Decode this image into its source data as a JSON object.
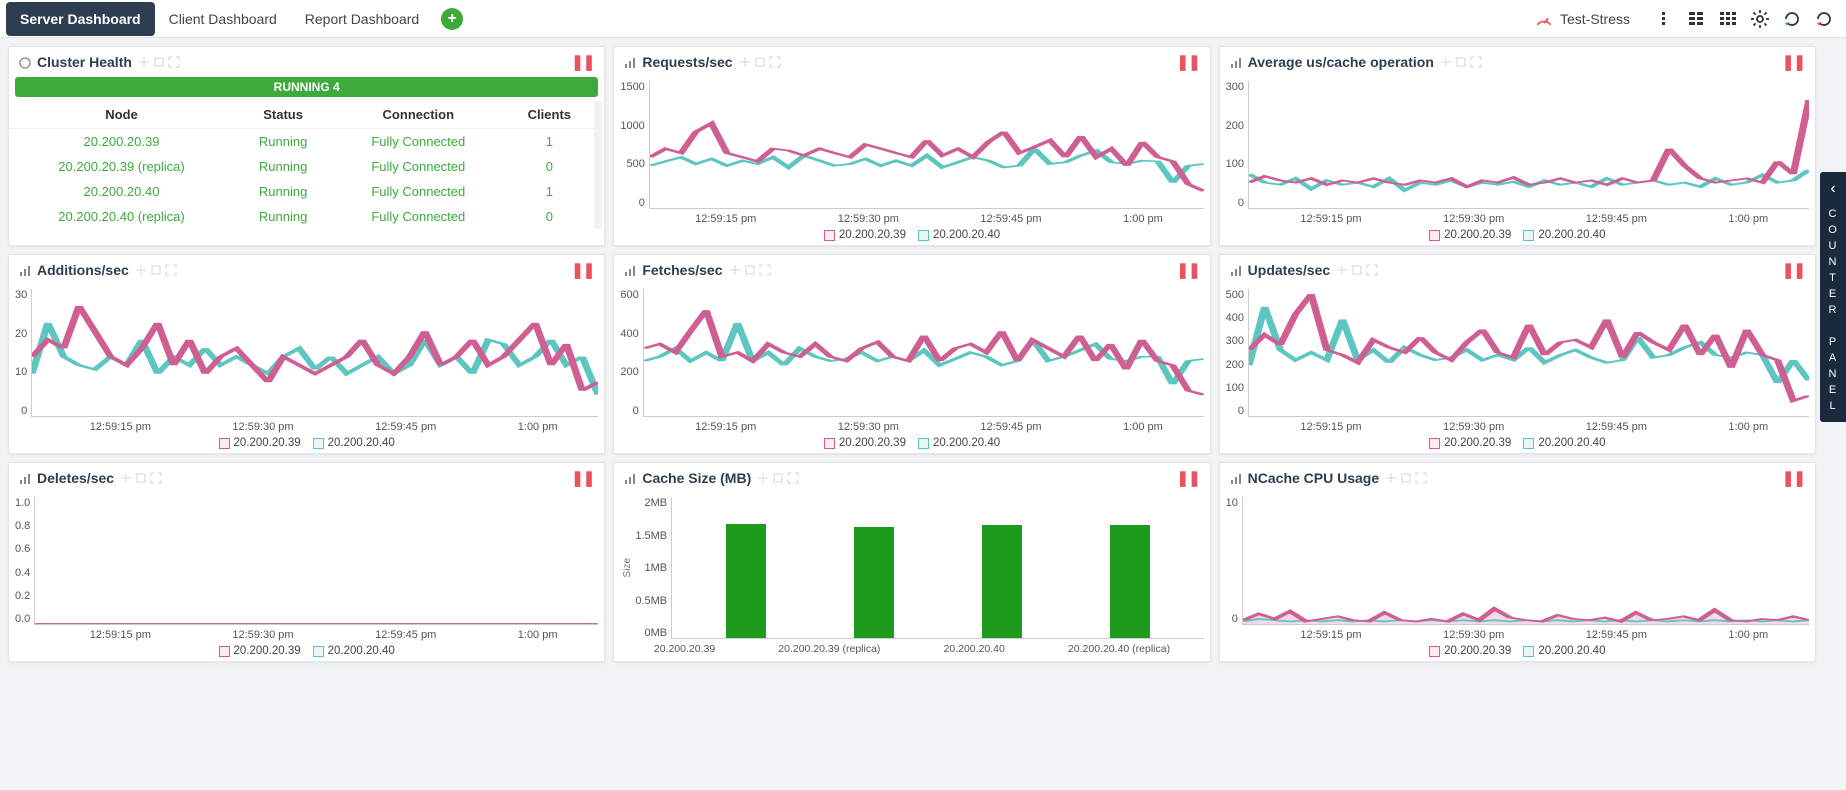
{
  "topbar": {
    "tabs": [
      "Server Dashboard",
      "Client Dashboard",
      "Report Dashboard"
    ],
    "active_tab_index": 0,
    "cluster_name": "Test-Stress"
  },
  "side_panel": {
    "label": "COUNTER PANEL"
  },
  "colors": {
    "series_a": "#cf5f93",
    "series_b": "#5ec6c0",
    "series_a_fill": "#e8b5d0",
    "bar": "#1d9b1d",
    "running": "#3eaa3e",
    "pause": "#e9525f"
  },
  "x_ticks": [
    "12:59:15 pm",
    "12:59:30 pm",
    "12:59:45 pm",
    "1:00 pm"
  ],
  "legend_series": [
    "20.200.20.39",
    "20.200.20.40"
  ],
  "cluster_health": {
    "title": "Cluster Health",
    "banner": "RUNNING 4",
    "columns": [
      "Node",
      "Status",
      "Connection",
      "Clients"
    ],
    "rows": [
      [
        "20.200.20.39",
        "Running",
        "Fully Connected",
        "1"
      ],
      [
        "20.200.20.39 (replica)",
        "Running",
        "Fully Connected",
        "0"
      ],
      [
        "20.200.20.40",
        "Running",
        "Fully Connected",
        "1"
      ],
      [
        "20.200.20.40 (replica)",
        "Running",
        "Fully Connected",
        "0"
      ]
    ]
  },
  "charts": {
    "requests": {
      "title": "Requests/sec",
      "ymax": 1500,
      "yticks": [
        "1500",
        "1000",
        "500",
        "0"
      ],
      "series_a": [
        600,
        700,
        650,
        900,
        1000,
        650,
        600,
        550,
        700,
        680,
        620,
        700,
        650,
        600,
        750,
        700,
        650,
        600,
        800,
        620,
        700,
        600,
        780,
        900,
        650,
        720,
        800,
        600,
        850,
        600,
        700,
        500,
        780,
        600,
        550,
        280,
        200
      ],
      "series_b": [
        500,
        550,
        600,
        520,
        580,
        500,
        560,
        520,
        600,
        480,
        620,
        560,
        500,
        520,
        580,
        500,
        560,
        500,
        620,
        480,
        540,
        600,
        560,
        480,
        500,
        700,
        520,
        540,
        620,
        680,
        540,
        520,
        560,
        550,
        300,
        500,
        520
      ]
    },
    "avg_us": {
      "title": "Average us/cache operation",
      "ymax": 300,
      "yticks": [
        "300",
        "200",
        "100",
        "0"
      ],
      "series_a": [
        60,
        75,
        65,
        60,
        70,
        55,
        65,
        60,
        70,
        60,
        55,
        65,
        60,
        70,
        50,
        65,
        60,
        72,
        55,
        60,
        70,
        60,
        65,
        55,
        70,
        60,
        65,
        140,
        100,
        70,
        60,
        65,
        70,
        60,
        110,
        80,
        255
      ],
      "series_b": [
        80,
        60,
        55,
        70,
        45,
        65,
        55,
        60,
        50,
        70,
        42,
        60,
        55,
        65,
        50,
        60,
        55,
        62,
        50,
        65,
        55,
        60,
        50,
        70,
        55,
        60,
        65,
        55,
        60,
        50,
        70,
        55,
        60,
        78,
        60,
        65,
        90
      ]
    },
    "additions": {
      "title": "Additions/sec",
      "ymax": 30,
      "yticks": [
        "30",
        "20",
        "10",
        "0"
      ],
      "series_a": [
        14,
        18,
        16,
        26,
        20,
        14,
        12,
        16,
        22,
        12,
        18,
        10,
        14,
        16,
        12,
        8,
        14,
        12,
        10,
        12,
        14,
        18,
        12,
        10,
        14,
        20,
        12,
        14,
        18,
        12,
        14,
        18,
        22,
        12,
        17,
        6,
        8
      ],
      "series_b": [
        10,
        22,
        14,
        12,
        11,
        14,
        12,
        18,
        10,
        14,
        12,
        16,
        12,
        14,
        12,
        10,
        14,
        16,
        11,
        14,
        10,
        12,
        14,
        10,
        12,
        18,
        12,
        14,
        10,
        18,
        17,
        12,
        14,
        18,
        12,
        14,
        5
      ]
    },
    "fetches": {
      "title": "Fetches/sec",
      "ymax": 600,
      "yticks": [
        "600",
        "400",
        "200",
        "0"
      ],
      "series_a": [
        320,
        340,
        300,
        400,
        500,
        280,
        300,
        260,
        340,
        300,
        280,
        340,
        280,
        260,
        320,
        350,
        280,
        260,
        380,
        260,
        320,
        340,
        300,
        400,
        260,
        360,
        320,
        280,
        380,
        260,
        340,
        220,
        360,
        260,
        240,
        120,
        100
      ],
      "series_b": [
        260,
        280,
        320,
        260,
        300,
        260,
        440,
        260,
        300,
        240,
        320,
        280,
        260,
        270,
        300,
        260,
        280,
        260,
        310,
        240,
        270,
        300,
        280,
        240,
        260,
        360,
        260,
        280,
        310,
        340,
        270,
        260,
        280,
        280,
        150,
        260,
        270
      ]
    },
    "updates": {
      "title": "Updates/sec",
      "ymax": 500,
      "yticks": [
        "500",
        "400",
        "300",
        "200",
        "100",
        "0"
      ],
      "series_a": [
        260,
        320,
        280,
        400,
        480,
        260,
        240,
        210,
        300,
        270,
        250,
        310,
        250,
        220,
        290,
        340,
        250,
        230,
        360,
        240,
        290,
        300,
        270,
        380,
        230,
        330,
        290,
        260,
        360,
        240,
        320,
        190,
        340,
        240,
        220,
        60,
        80
      ],
      "series_b": [
        200,
        430,
        260,
        220,
        250,
        220,
        380,
        220,
        260,
        210,
        270,
        240,
        220,
        230,
        260,
        220,
        240,
        220,
        270,
        210,
        240,
        260,
        230,
        210,
        220,
        310,
        230,
        240,
        270,
        290,
        240,
        230,
        250,
        240,
        130,
        220,
        140
      ]
    },
    "deletes": {
      "title": "Deletes/sec",
      "ymax": 1.0,
      "yticks": [
        "1.0",
        "0.8",
        "0.6",
        "0.4",
        "0.2",
        "0.0"
      ],
      "series_a": [
        0,
        0,
        0,
        0,
        0,
        0,
        0,
        0,
        0,
        0,
        0,
        0,
        0,
        0,
        0,
        0,
        0,
        0,
        0,
        0,
        0,
        0,
        0,
        0,
        0,
        0,
        0,
        0,
        0,
        0,
        0,
        0,
        0,
        0,
        0,
        0,
        0
      ],
      "series_b": [
        0,
        0,
        0,
        0,
        0,
        0,
        0,
        0,
        0,
        0,
        0,
        0,
        0,
        0,
        0,
        0,
        0,
        0,
        0,
        0,
        0,
        0,
        0,
        0,
        0,
        0,
        0,
        0,
        0,
        0,
        0,
        0,
        0,
        0,
        0,
        0,
        0
      ]
    },
    "cpu": {
      "title": "NCache CPU Usage",
      "ymax": 10,
      "yticks": [
        "10",
        "",
        "0"
      ],
      "series_a": [
        0.3,
        0.8,
        0.4,
        1.0,
        0.2,
        0.4,
        0.6,
        0.3,
        0.2,
        0.9,
        0.3,
        0.2,
        0.4,
        0.2,
        0.8,
        0.3,
        1.2,
        0.5,
        0.3,
        0.2,
        0.7,
        0.4,
        0.3,
        0.5,
        0.2,
        0.9,
        0.3,
        0.4,
        0.6,
        0.3,
        1.1,
        0.3,
        0.2,
        0.4,
        0.3,
        0.6,
        0.3
      ],
      "series_b": [
        0.2,
        0.4,
        0.3,
        0.2,
        0.3,
        0.2,
        0.3,
        0.2,
        0.3,
        0.2,
        0.3,
        0.2,
        0.3,
        0.2,
        0.3,
        0.2,
        0.3,
        0.2,
        0.3,
        0.2,
        0.3,
        0.2,
        0.3,
        0.2,
        0.3,
        0.2,
        0.3,
        0.2,
        0.3,
        0.2,
        0.3,
        0.2,
        0.3,
        0.2,
        0.3,
        0.2,
        0.3
      ],
      "fill_a": true
    },
    "cache_size": {
      "title": "Cache Size (MB)",
      "ymax": 2,
      "yticks": [
        "2MB",
        "1.5MB",
        "1MB",
        "0.5MB",
        "0MB"
      ],
      "ylabel": "Size",
      "categories": [
        "20.200.20.39",
        "20.200.20.39 (replica)",
        "20.200.20.40",
        "20.200.20.40 (replica)"
      ],
      "values": [
        1.62,
        1.58,
        1.6,
        1.6
      ]
    }
  }
}
